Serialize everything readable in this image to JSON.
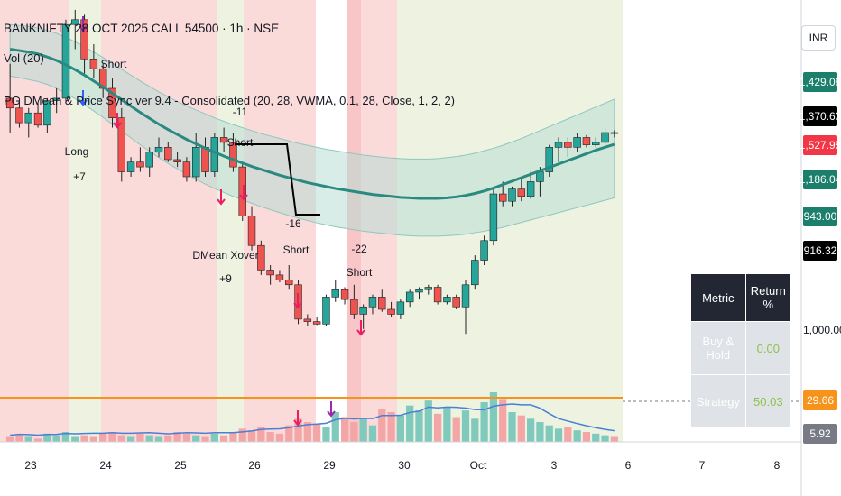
{
  "header": {
    "title": "BANKNIFTY 28 OCT 2025 CALL 54500 · 1h · NSE",
    "volume": "Vol (20)",
    "indicator": "PG DMean & Price Sync ver 9.4 - Consolidated (20, 28, VWMA, 0.1, 28, Close, 1, 2, 2)"
  },
  "currency": "INR",
  "price_tags": [
    {
      "label": "1,429.08",
      "color": "#1b7f6c"
    },
    {
      "label": "1,370.63",
      "color": "#000000"
    },
    {
      "label": "1,527.95",
      "color": "#f23645"
    },
    {
      "label": "1,186.04",
      "color": "#1b7f6c"
    },
    {
      "label": "943.00",
      "color": "#1b7f6c"
    },
    {
      "label": "916.32",
      "color": "#000000"
    },
    {
      "label": "29.66",
      "color": "#f7931a"
    },
    {
      "label": "5.92",
      "color": "#787b86"
    }
  ],
  "axis_label": "1,000.00",
  "metrics": {
    "headers": [
      "Metric",
      "Return %"
    ],
    "rows": [
      {
        "metric": "Buy & Hold",
        "value": "0.00"
      },
      {
        "metric": "Strategy",
        "value": "50.03"
      }
    ]
  },
  "colors": {
    "up": "#26a69a",
    "down": "#ef5350",
    "ma": "#2a8a80",
    "band": "#b8ddd6"
  },
  "chart_data": {
    "type": "candlestick",
    "x_tick_labels": [
      "23",
      "24",
      "25",
      "26",
      "29",
      "30",
      "Oct",
      "3",
      "6",
      "7",
      "8"
    ],
    "ylim": [
      700,
      1600
    ],
    "candles": [
      {
        "o": 1400,
        "h": 1470,
        "l": 1330,
        "c": 1380
      },
      {
        "o": 1380,
        "h": 1400,
        "l": 1340,
        "c": 1350
      },
      {
        "o": 1350,
        "h": 1380,
        "l": 1320,
        "c": 1370
      },
      {
        "o": 1370,
        "h": 1390,
        "l": 1340,
        "c": 1345
      },
      {
        "o": 1345,
        "h": 1400,
        "l": 1330,
        "c": 1395
      },
      {
        "o": 1395,
        "h": 1420,
        "l": 1370,
        "c": 1400
      },
      {
        "o": 1400,
        "h": 1560,
        "l": 1390,
        "c": 1550
      },
      {
        "o": 1550,
        "h": 1580,
        "l": 1500,
        "c": 1560
      },
      {
        "o": 1560,
        "h": 1570,
        "l": 1450,
        "c": 1480
      },
      {
        "o": 1480,
        "h": 1510,
        "l": 1440,
        "c": 1460
      },
      {
        "o": 1460,
        "h": 1470,
        "l": 1400,
        "c": 1420
      },
      {
        "o": 1420,
        "h": 1440,
        "l": 1340,
        "c": 1360
      },
      {
        "o": 1360,
        "h": 1380,
        "l": 1230,
        "c": 1250
      },
      {
        "o": 1250,
        "h": 1280,
        "l": 1240,
        "c": 1270
      },
      {
        "o": 1270,
        "h": 1300,
        "l": 1250,
        "c": 1260
      },
      {
        "o": 1260,
        "h": 1300,
        "l": 1240,
        "c": 1290
      },
      {
        "o": 1290,
        "h": 1320,
        "l": 1280,
        "c": 1300
      },
      {
        "o": 1300,
        "h": 1310,
        "l": 1270,
        "c": 1275
      },
      {
        "o": 1275,
        "h": 1290,
        "l": 1260,
        "c": 1270
      },
      {
        "o": 1270,
        "h": 1280,
        "l": 1230,
        "c": 1240
      },
      {
        "o": 1240,
        "h": 1330,
        "l": 1230,
        "c": 1300
      },
      {
        "o": 1300,
        "h": 1320,
        "l": 1240,
        "c": 1250
      },
      {
        "o": 1250,
        "h": 1330,
        "l": 1240,
        "c": 1320
      },
      {
        "o": 1320,
        "h": 1340,
        "l": 1290,
        "c": 1310
      },
      {
        "o": 1310,
        "h": 1330,
        "l": 1250,
        "c": 1260
      },
      {
        "o": 1260,
        "h": 1270,
        "l": 1150,
        "c": 1160
      },
      {
        "o": 1160,
        "h": 1180,
        "l": 1090,
        "c": 1100
      },
      {
        "o": 1100,
        "h": 1110,
        "l": 1040,
        "c": 1050
      },
      {
        "o": 1050,
        "h": 1060,
        "l": 1020,
        "c": 1040
      },
      {
        "o": 1040,
        "h": 1050,
        "l": 1025,
        "c": 1030
      },
      {
        "o": 1030,
        "h": 1060,
        "l": 1010,
        "c": 1020
      },
      {
        "o": 1020,
        "h": 1030,
        "l": 940,
        "c": 950
      },
      {
        "o": 950,
        "h": 960,
        "l": 935,
        "c": 945
      },
      {
        "o": 945,
        "h": 955,
        "l": 938,
        "c": 940
      },
      {
        "o": 940,
        "h": 1000,
        "l": 935,
        "c": 995
      },
      {
        "o": 995,
        "h": 1030,
        "l": 985,
        "c": 1010
      },
      {
        "o": 1010,
        "h": 1015,
        "l": 980,
        "c": 990
      },
      {
        "o": 990,
        "h": 1020,
        "l": 950,
        "c": 960
      },
      {
        "o": 960,
        "h": 980,
        "l": 930,
        "c": 975
      },
      {
        "o": 975,
        "h": 1000,
        "l": 960,
        "c": 995
      },
      {
        "o": 995,
        "h": 1010,
        "l": 965,
        "c": 970
      },
      {
        "o": 970,
        "h": 985,
        "l": 955,
        "c": 960
      },
      {
        "o": 960,
        "h": 990,
        "l": 950,
        "c": 985
      },
      {
        "o": 985,
        "h": 1010,
        "l": 975,
        "c": 1005
      },
      {
        "o": 1005,
        "h": 1015,
        "l": 990,
        "c": 1010
      },
      {
        "o": 1010,
        "h": 1020,
        "l": 1000,
        "c": 1015
      },
      {
        "o": 1015,
        "h": 1020,
        "l": 980,
        "c": 985
      },
      {
        "o": 985,
        "h": 1000,
        "l": 980,
        "c": 995
      },
      {
        "o": 995,
        "h": 1000,
        "l": 970,
        "c": 975
      },
      {
        "o": 975,
        "h": 1030,
        "l": 920,
        "c": 1020
      },
      {
        "o": 1020,
        "h": 1080,
        "l": 1010,
        "c": 1070
      },
      {
        "o": 1070,
        "h": 1120,
        "l": 1060,
        "c": 1110
      },
      {
        "o": 1110,
        "h": 1215,
        "l": 1100,
        "c": 1205
      },
      {
        "o": 1205,
        "h": 1230,
        "l": 1180,
        "c": 1190
      },
      {
        "o": 1190,
        "h": 1220,
        "l": 1180,
        "c": 1215
      },
      {
        "o": 1215,
        "h": 1240,
        "l": 1190,
        "c": 1200
      },
      {
        "o": 1200,
        "h": 1250,
        "l": 1195,
        "c": 1230
      },
      {
        "o": 1230,
        "h": 1260,
        "l": 1200,
        "c": 1250
      },
      {
        "o": 1250,
        "h": 1305,
        "l": 1240,
        "c": 1300
      },
      {
        "o": 1300,
        "h": 1320,
        "l": 1270,
        "c": 1310
      },
      {
        "o": 1310,
        "h": 1320,
        "l": 1280,
        "c": 1300
      },
      {
        "o": 1300,
        "h": 1330,
        "l": 1290,
        "c": 1320
      },
      {
        "o": 1320,
        "h": 1325,
        "l": 1300,
        "c": 1305
      },
      {
        "o": 1305,
        "h": 1320,
        "l": 1300,
        "c": 1310
      },
      {
        "o": 1310,
        "h": 1340,
        "l": 1300,
        "c": 1330
      },
      {
        "o": 1330,
        "h": 1335,
        "l": 1320,
        "c": 1328
      }
    ],
    "moving_average": [
      1500,
      1497,
      1494,
      1490,
      1484,
      1477,
      1468,
      1458,
      1447,
      1435,
      1423,
      1410,
      1397,
      1384,
      1371,
      1359,
      1347,
      1336,
      1326,
      1316,
      1307,
      1298,
      1290,
      1282,
      1275,
      1268,
      1261,
      1255,
      1249,
      1243,
      1238,
      1233,
      1228,
      1224,
      1220,
      1216,
      1213,
      1210,
      1207,
      1204,
      1202,
      1200,
      1198,
      1197,
      1196,
      1196,
      1196,
      1197,
      1199,
      1202,
      1206,
      1211,
      1217,
      1224,
      1231,
      1238,
      1245,
      1252,
      1259,
      1266,
      1273,
      1280,
      1287,
      1294,
      1300,
      1306
    ],
    "band_upper": [
      1550,
      1548,
      1546,
      1543,
      1538,
      1532,
      1524,
      1515,
      1505,
      1494,
      1483,
      1471,
      1459,
      1447,
      1435,
      1424,
      1413,
      1403,
      1393,
      1384,
      1376,
      1368,
      1360,
      1353,
      1346,
      1340,
      1334,
      1328,
      1323,
      1318,
      1313,
      1308,
      1304,
      1300,
      1296,
      1293,
      1290,
      1287,
      1284,
      1282,
      1280,
      1278,
      1277,
      1276,
      1276,
      1276,
      1277,
      1279,
      1281,
      1284,
      1288,
      1293,
      1298,
      1304,
      1311,
      1318,
      1326,
      1334,
      1342,
      1350,
      1358,
      1366,
      1374,
      1382,
      1390,
      1398
    ],
    "band_lower": [
      1445,
      1442,
      1438,
      1434,
      1428,
      1420,
      1410,
      1399,
      1387,
      1374,
      1361,
      1347,
      1333,
      1319,
      1305,
      1292,
      1279,
      1267,
      1256,
      1245,
      1235,
      1225,
      1216,
      1208,
      1200,
      1193,
      1186,
      1179,
      1173,
      1167,
      1161,
      1156,
      1151,
      1146,
      1142,
      1138,
      1135,
      1132,
      1129,
      1127,
      1125,
      1123,
      1121,
      1120,
      1119,
      1119,
      1119,
      1120,
      1121,
      1123,
      1126,
      1129,
      1133,
      1137,
      1142,
      1147,
      1152,
      1157,
      1162,
      1167,
      1172,
      1177,
      1182,
      1187,
      1192,
      1197
    ],
    "volume": [
      3,
      4,
      3,
      2,
      5,
      4,
      6,
      3,
      4,
      3,
      5,
      6,
      4,
      3,
      5,
      4,
      3,
      4,
      6,
      5,
      4,
      3,
      5,
      4,
      6,
      8,
      7,
      9,
      6,
      5,
      10,
      14,
      12,
      11,
      9,
      18,
      15,
      12,
      14,
      10,
      20,
      18,
      16,
      22,
      19,
      25,
      17,
      21,
      15,
      19,
      14,
      24,
      30,
      26,
      18,
      16,
      14,
      12,
      10,
      8,
      9,
      7,
      6,
      5,
      4,
      3
    ],
    "annotations": [
      {
        "text": "Short",
        "type": "label"
      },
      {
        "text": "Long",
        "type": "label"
      },
      {
        "text": "+7",
        "type": "label"
      },
      {
        "text": "-11",
        "type": "label"
      },
      {
        "text": "Short",
        "type": "label"
      },
      {
        "text": "-16",
        "type": "label"
      },
      {
        "text": "Short",
        "type": "label"
      },
      {
        "text": "DMean Xover",
        "type": "label"
      },
      {
        "text": "+9",
        "type": "label"
      },
      {
        "text": "-22",
        "type": "label"
      },
      {
        "text": "Short",
        "type": "label"
      }
    ]
  }
}
